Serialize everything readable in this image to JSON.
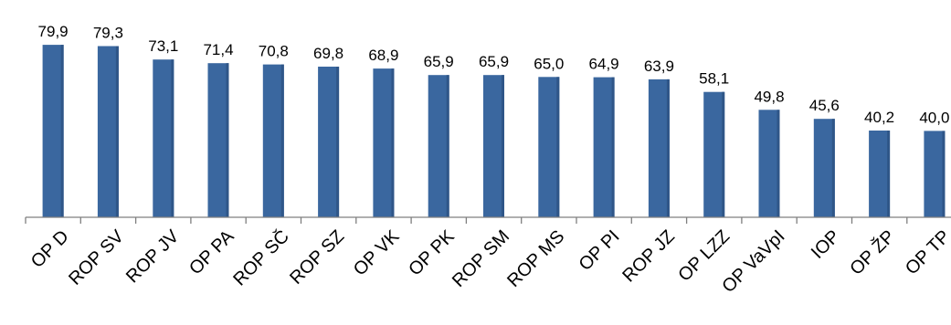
{
  "chart_data": {
    "type": "bar",
    "categories": [
      "OP D",
      "ROP SV",
      "ROP JV",
      "OP PA",
      "ROP SČ",
      "ROP SZ",
      "OP VK",
      "OP PK",
      "ROP SM",
      "ROP MS",
      "OP PI",
      "ROP JZ",
      "OP LZZ",
      "OP VaVpI",
      "IOP",
      "OP ŽP",
      "OP TP"
    ],
    "values": [
      79.9,
      79.3,
      73.1,
      71.4,
      70.8,
      69.8,
      68.9,
      65.9,
      65.9,
      65.0,
      64.9,
      63.9,
      58.1,
      49.8,
      45.6,
      40.2,
      40.0
    ],
    "value_labels": [
      "79,9",
      "79,3",
      "73,1",
      "71,4",
      "70,8",
      "69,8",
      "68,9",
      "65,9",
      "65,9",
      "65,0",
      "64,9",
      "63,9",
      "58,1",
      "49,8",
      "45,6",
      "40,2",
      "40,0"
    ],
    "title": "",
    "xlabel": "",
    "ylabel": "",
    "ylim": [
      0,
      100
    ],
    "grid": false,
    "legend": "none",
    "bar_color": "#3a679f"
  }
}
